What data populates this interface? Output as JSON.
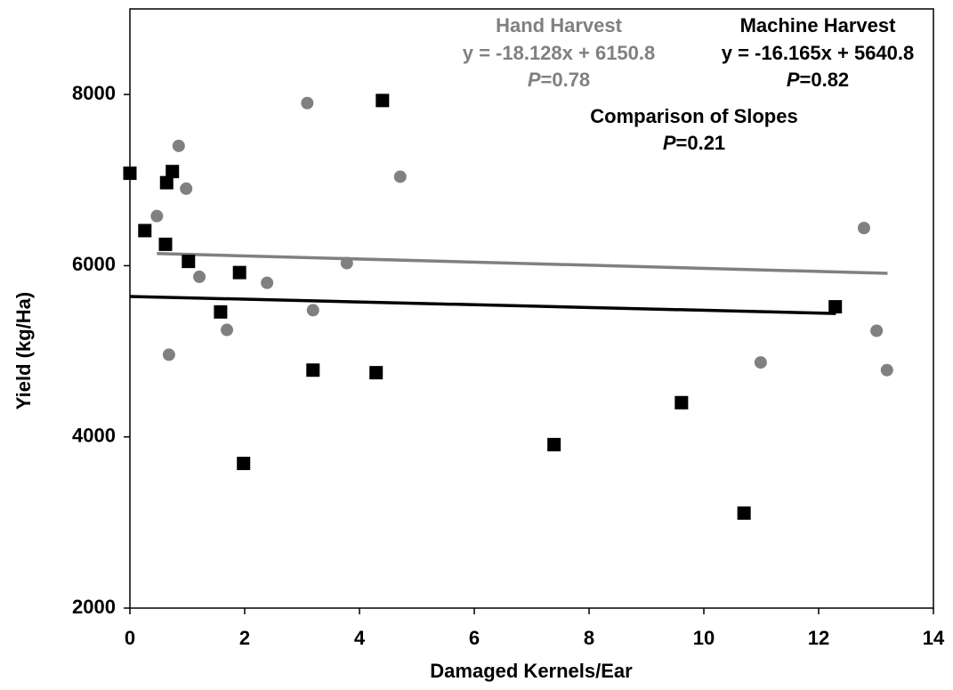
{
  "chart_data": {
    "type": "scatter",
    "x_label": "Damaged Kernels/Ear",
    "y_label": "Yield (kg/Ha)",
    "xlim": [
      0,
      14
    ],
    "ylim": [
      2000,
      9000
    ],
    "xticks": [
      0,
      2,
      4,
      6,
      8,
      10,
      12,
      14
    ],
    "yticks": [
      2000,
      4000,
      6000,
      8000
    ],
    "series": [
      {
        "name": "Hand Harvest",
        "color": "#808080",
        "marker": "circle",
        "x": [
          0.47,
          0.85,
          0.98,
          0.68,
          1.21,
          1.69,
          2.39,
          3.09,
          3.19,
          3.78,
          4.71,
          10.99,
          12.79,
          13.01,
          13.19
        ],
        "values": [
          6580,
          7400,
          6900,
          4960,
          5870,
          5250,
          5800,
          7900,
          5480,
          6030,
          7040,
          4870,
          6440,
          5240,
          4780
        ],
        "trend": {
          "x": [
            0.47,
            13.2
          ],
          "values": [
            6142,
            5911
          ]
        },
        "equation": "y = -18.128x + 6150.8",
        "p_label": "P",
        "p_value": "=0.78"
      },
      {
        "name": "Machine Harvest",
        "color": "#000000",
        "marker": "square",
        "x": [
          0,
          0.26,
          0.64,
          0.74,
          0.62,
          1.02,
          1.58,
          1.91,
          1.98,
          3.19,
          4.4,
          4.29,
          7.39,
          9.61,
          10.7,
          12.29
        ],
        "values": [
          7080,
          6410,
          6970,
          7100,
          6250,
          6050,
          5460,
          5920,
          3690,
          4780,
          7930,
          4750,
          3910,
          4400,
          3110,
          5520
        ],
        "trend": {
          "x": [
            0,
            12.3
          ],
          "values": [
            5641,
            5442
          ]
        },
        "equation": "y = -16.165x + 5640.8",
        "p_label": "P",
        "p_value": "=0.82"
      }
    ],
    "comparison": {
      "title": "Comparison of Slopes",
      "p_label": "P",
      "p_value": "=0.21"
    }
  }
}
